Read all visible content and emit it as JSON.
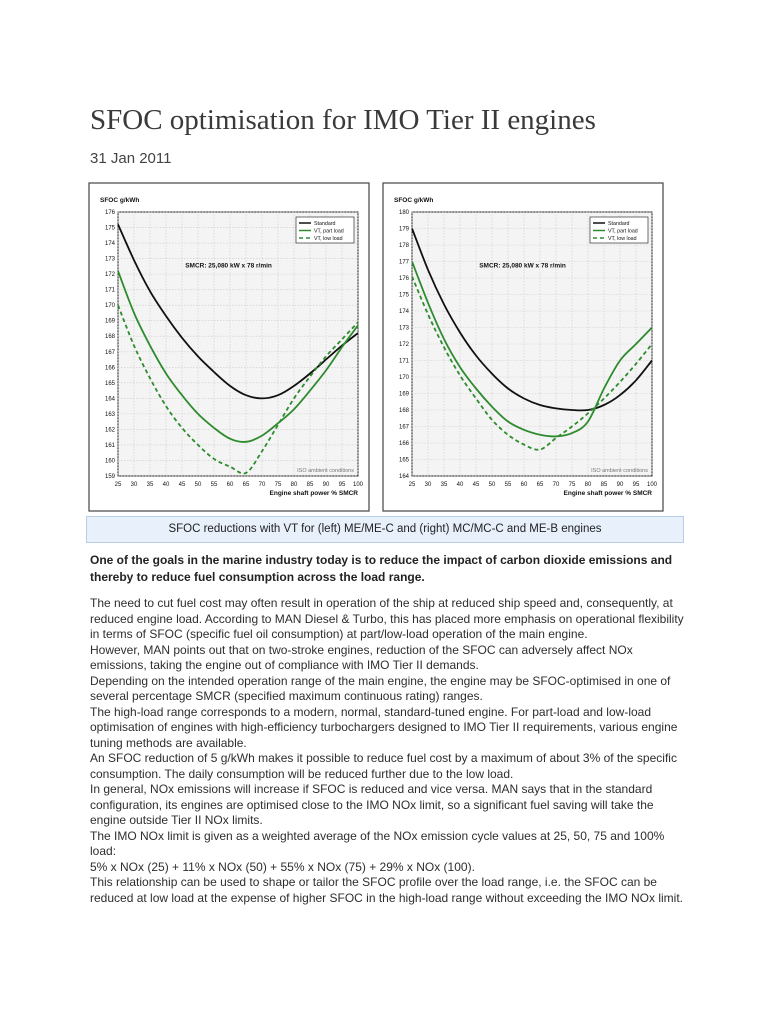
{
  "article": {
    "title": "SFOC optimisation for IMO Tier II engines",
    "date": "31 Jan 2011",
    "caption": "SFOC reductions with VT for (left) ME/ME-C and (right) MC/MC-C and ME-B engines",
    "lead": "One of the goals in the marine industry today is to reduce the impact of carbon dioxide emissions and thereby to reduce fuel consumption across the load range.",
    "paragraphs": [
      "The need to cut fuel cost may often result in operation of the ship at reduced ship speed and, consequently, at reduced engine load. According to MAN Diesel & Turbo, this has placed more emphasis on operational flexibility in terms of SFOC (specific fuel oil consumption) at part/low-load operation of the main engine.",
      "However, MAN points out that on two-stroke engines, reduction of the SFOC can adversely affect NOx emissions, taking the engine out of compliance with IMO Tier II demands.",
      "Depending on the intended operation range of the main engine, the engine may be SFOC-optimised in one of several percentage SMCR (specified maximum continuous rating) ranges.",
      "The high-load range corresponds to a modern, normal, standard-tuned engine. For part-load and low-load optimisation of engines with high-efficiency turbochargers designed to IMO Tier II requirements, various engine tuning methods are available.",
      "An SFOC reduction of 5 g/kWh makes it possible to reduce fuel cost by a maximum of about 3% of the specific consumption. The daily consumption will be reduced further due to the low load.",
      "In general, NOx emissions will increase if SFOC is reduced and vice versa. MAN says that in the standard configuration, its engines are optimised close to the IMO NOx limit, so a significant fuel saving will take the engine outside Tier II NOx limits.",
      "The IMO NOx limit is given as a weighted average of the NOx emission cycle values at 25, 50, 75 and 100% load:",
      "5% x NOx (25) + 11% x NOx (50) + 55% x NOx (75) + 29% x NOx (100).",
      "This relationship can be used to shape or tailor the SFOC profile over the load range, i.e. the SFOC can be reduced at low load at the expense of higher SFOC in the high-load range without exceeding the IMO NOx limit."
    ]
  },
  "colors": {
    "standard": "#111111",
    "vt": "#2e8b2e",
    "grid": "#c9c9c9",
    "caption_bg": "#e7f0fb"
  },
  "chart_data": [
    {
      "type": "line",
      "ylabel": "SFOC g/kWh",
      "xlabel": "Engine shaft power % SMCR",
      "annotation": "SMCR: 25,080 kW x 78 r/min",
      "note": "ISO ambient conditions",
      "xlim": [
        25,
        100
      ],
      "ylim": [
        159,
        176
      ],
      "xticks": [
        25,
        30,
        35,
        40,
        45,
        50,
        55,
        60,
        65,
        70,
        75,
        80,
        85,
        90,
        95,
        100
      ],
      "yticks": [
        159,
        160,
        161,
        162,
        163,
        164,
        165,
        166,
        167,
        168,
        169,
        170,
        171,
        172,
        173,
        174,
        175,
        176
      ],
      "legend": [
        "Standard",
        "VT, part load",
        "VT, low load"
      ],
      "legend_position": "top-right",
      "series": [
        {
          "name": "Standard",
          "style": "solid-black",
          "x": [
            25,
            30,
            35,
            40,
            45,
            50,
            55,
            60,
            65,
            70,
            75,
            80,
            85,
            90,
            95,
            100
          ],
          "y": [
            175.2,
            172.9,
            170.9,
            169.3,
            167.9,
            166.7,
            165.7,
            164.8,
            164.2,
            164.0,
            164.2,
            164.8,
            165.6,
            166.5,
            167.4,
            168.2
          ]
        },
        {
          "name": "VT, part load",
          "style": "solid-green",
          "x": [
            25,
            30,
            35,
            40,
            45,
            50,
            55,
            60,
            65,
            70,
            75,
            80,
            85,
            90,
            95,
            100
          ],
          "y": [
            172.2,
            169.5,
            167.4,
            165.6,
            164.2,
            163.0,
            162.1,
            161.4,
            161.2,
            161.6,
            162.4,
            163.3,
            164.5,
            165.8,
            167.3,
            168.7
          ]
        },
        {
          "name": "VT, low load",
          "style": "dashed-green",
          "x": [
            25,
            30,
            35,
            40,
            45,
            50,
            55,
            60,
            65,
            70,
            75,
            80,
            85,
            90,
            95,
            100
          ],
          "y": [
            170.0,
            167.4,
            165.3,
            163.5,
            162.1,
            161.0,
            160.1,
            159.6,
            159.2,
            160.6,
            162.3,
            164.0,
            165.4,
            166.7,
            167.8,
            168.9
          ]
        }
      ]
    },
    {
      "type": "line",
      "ylabel": "SFOC g/kWh",
      "xlabel": "Engine shaft power % SMCR",
      "annotation": "SMCR: 25,080 kW x 78 r/min",
      "note": "ISO ambient conditions",
      "xlim": [
        25,
        100
      ],
      "ylim": [
        164,
        180
      ],
      "xticks": [
        25,
        30,
        35,
        40,
        45,
        50,
        55,
        60,
        65,
        70,
        75,
        80,
        85,
        90,
        95,
        100
      ],
      "yticks": [
        164,
        165,
        166,
        167,
        168,
        169,
        170,
        171,
        172,
        173,
        174,
        175,
        176,
        177,
        178,
        179,
        180
      ],
      "legend": [
        "Standard",
        "VT, part load",
        "VT, low load"
      ],
      "legend_position": "top-right",
      "series": [
        {
          "name": "Standard",
          "style": "solid-black",
          "x": [
            25,
            30,
            35,
            40,
            45,
            50,
            55,
            60,
            65,
            70,
            75,
            80,
            85,
            90,
            95,
            100
          ],
          "y": [
            179.0,
            176.5,
            174.4,
            172.7,
            171.3,
            170.2,
            169.3,
            168.7,
            168.3,
            168.1,
            168.0,
            168.0,
            168.3,
            168.9,
            169.8,
            171.0
          ]
        },
        {
          "name": "VT, part load",
          "style": "solid-green",
          "x": [
            25,
            30,
            35,
            40,
            45,
            50,
            55,
            60,
            65,
            70,
            75,
            80,
            85,
            90,
            95,
            100
          ],
          "y": [
            177.0,
            174.5,
            172.3,
            170.6,
            169.3,
            168.2,
            167.3,
            166.8,
            166.5,
            166.4,
            166.6,
            167.3,
            169.3,
            171.0,
            172.0,
            173.0
          ]
        },
        {
          "name": "VT, low load",
          "style": "dashed-green",
          "x": [
            25,
            30,
            35,
            40,
            45,
            50,
            55,
            60,
            65,
            70,
            75,
            80,
            85,
            90,
            95,
            100
          ],
          "y": [
            176.1,
            173.8,
            171.8,
            170.1,
            168.7,
            167.4,
            166.5,
            165.9,
            165.6,
            166.3,
            167.0,
            167.8,
            168.7,
            169.7,
            170.8,
            172.0
          ]
        }
      ]
    }
  ]
}
